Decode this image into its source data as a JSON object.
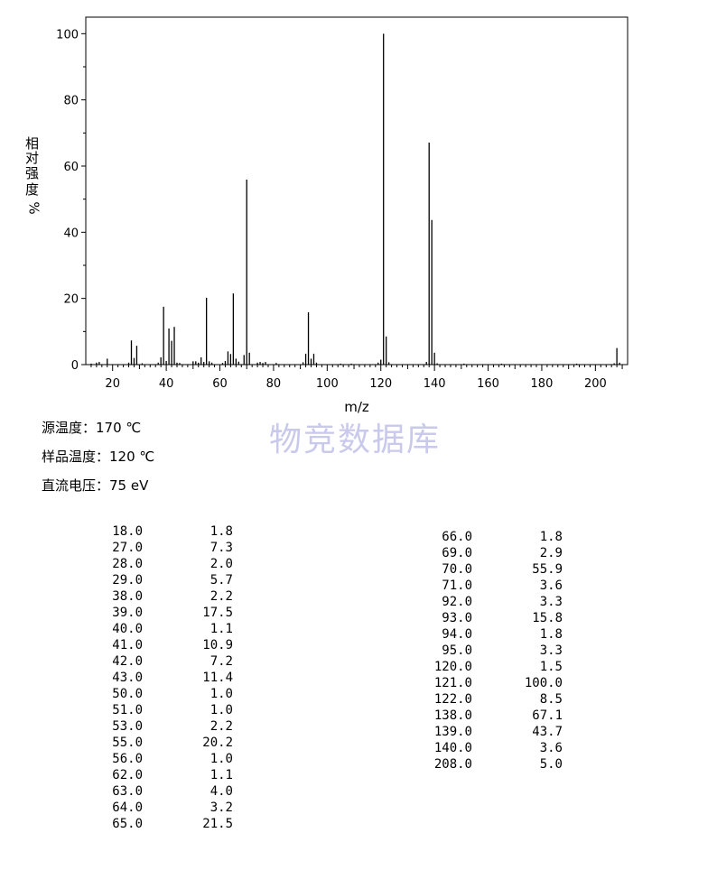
{
  "chart_data": {
    "type": "bar",
    "xlabel": "m/z",
    "ylabel": "相对强度%",
    "ylabel_chars": [
      "相",
      "对",
      "强",
      "度",
      "%"
    ],
    "xlim": [
      10,
      212
    ],
    "ylim": [
      0,
      105
    ],
    "xticks": [
      20,
      40,
      60,
      80,
      100,
      120,
      140,
      160,
      180,
      200
    ],
    "yticks": [
      0,
      20,
      40,
      60,
      80,
      100
    ],
    "peaks": [
      {
        "mz": 12,
        "intensity": 0.3
      },
      {
        "mz": 14,
        "intensity": 0.6
      },
      {
        "mz": 15,
        "intensity": 0.8
      },
      {
        "mz": 18,
        "intensity": 1.8
      },
      {
        "mz": 26,
        "intensity": 0.6
      },
      {
        "mz": 27,
        "intensity": 7.3
      },
      {
        "mz": 28,
        "intensity": 2.0
      },
      {
        "mz": 29,
        "intensity": 5.7
      },
      {
        "mz": 31,
        "intensity": 0.4
      },
      {
        "mz": 37,
        "intensity": 0.6
      },
      {
        "mz": 38,
        "intensity": 2.2
      },
      {
        "mz": 39,
        "intensity": 17.5
      },
      {
        "mz": 40,
        "intensity": 1.1
      },
      {
        "mz": 41,
        "intensity": 10.9
      },
      {
        "mz": 42,
        "intensity": 7.2
      },
      {
        "mz": 43,
        "intensity": 11.4
      },
      {
        "mz": 44,
        "intensity": 0.6
      },
      {
        "mz": 45,
        "intensity": 0.5
      },
      {
        "mz": 50,
        "intensity": 1.0
      },
      {
        "mz": 51,
        "intensity": 1.0
      },
      {
        "mz": 52,
        "intensity": 0.6
      },
      {
        "mz": 53,
        "intensity": 2.2
      },
      {
        "mz": 54,
        "intensity": 0.8
      },
      {
        "mz": 55,
        "intensity": 20.2
      },
      {
        "mz": 56,
        "intensity": 1.0
      },
      {
        "mz": 57,
        "intensity": 0.6
      },
      {
        "mz": 61,
        "intensity": 0.5
      },
      {
        "mz": 62,
        "intensity": 1.1
      },
      {
        "mz": 63,
        "intensity": 4.0
      },
      {
        "mz": 64,
        "intensity": 3.2
      },
      {
        "mz": 65,
        "intensity": 21.5
      },
      {
        "mz": 66,
        "intensity": 1.8
      },
      {
        "mz": 67,
        "intensity": 0.9
      },
      {
        "mz": 69,
        "intensity": 2.9
      },
      {
        "mz": 70,
        "intensity": 55.9
      },
      {
        "mz": 71,
        "intensity": 3.6
      },
      {
        "mz": 74,
        "intensity": 0.6
      },
      {
        "mz": 75,
        "intensity": 0.8
      },
      {
        "mz": 76,
        "intensity": 0.5
      },
      {
        "mz": 77,
        "intensity": 0.8
      },
      {
        "mz": 81,
        "intensity": 0.5
      },
      {
        "mz": 91,
        "intensity": 0.7
      },
      {
        "mz": 92,
        "intensity": 3.3
      },
      {
        "mz": 93,
        "intensity": 15.8
      },
      {
        "mz": 94,
        "intensity": 1.8
      },
      {
        "mz": 95,
        "intensity": 3.3
      },
      {
        "mz": 96,
        "intensity": 0.6
      },
      {
        "mz": 105,
        "intensity": 0.3
      },
      {
        "mz": 109,
        "intensity": 0.3
      },
      {
        "mz": 119,
        "intensity": 0.6
      },
      {
        "mz": 120,
        "intensity": 1.5
      },
      {
        "mz": 121,
        "intensity": 100.0
      },
      {
        "mz": 122,
        "intensity": 8.5
      },
      {
        "mz": 123,
        "intensity": 0.7
      },
      {
        "mz": 137,
        "intensity": 0.8
      },
      {
        "mz": 138,
        "intensity": 67.1
      },
      {
        "mz": 139,
        "intensity": 43.7
      },
      {
        "mz": 140,
        "intensity": 3.6
      },
      {
        "mz": 141,
        "intensity": 0.4
      },
      {
        "mz": 151,
        "intensity": 0.3
      },
      {
        "mz": 165,
        "intensity": 0.3
      },
      {
        "mz": 193,
        "intensity": 0.3
      },
      {
        "mz": 207,
        "intensity": 0.4
      },
      {
        "mz": 208,
        "intensity": 5.0
      },
      {
        "mz": 209,
        "intensity": 0.6
      }
    ]
  },
  "watermark": "物竞数据库",
  "conditions": [
    "源温度：170 ℃",
    "样品温度：120 ℃",
    "直流电压：75 eV"
  ],
  "peak_table_left": [
    {
      "mz": "18.0",
      "int": "1.8"
    },
    {
      "mz": "27.0",
      "int": "7.3"
    },
    {
      "mz": "28.0",
      "int": "2.0"
    },
    {
      "mz": "29.0",
      "int": "5.7"
    },
    {
      "mz": "38.0",
      "int": "2.2"
    },
    {
      "mz": "39.0",
      "int": "17.5"
    },
    {
      "mz": "40.0",
      "int": "1.1"
    },
    {
      "mz": "41.0",
      "int": "10.9"
    },
    {
      "mz": "42.0",
      "int": "7.2"
    },
    {
      "mz": "43.0",
      "int": "11.4"
    },
    {
      "mz": "50.0",
      "int": "1.0"
    },
    {
      "mz": "51.0",
      "int": "1.0"
    },
    {
      "mz": "53.0",
      "int": "2.2"
    },
    {
      "mz": "55.0",
      "int": "20.2"
    },
    {
      "mz": "56.0",
      "int": "1.0"
    },
    {
      "mz": "62.0",
      "int": "1.1"
    },
    {
      "mz": "63.0",
      "int": "4.0"
    },
    {
      "mz": "64.0",
      "int": "3.2"
    },
    {
      "mz": "65.0",
      "int": "21.5"
    }
  ],
  "peak_table_right": [
    {
      "mz": "66.0",
      "int": "1.8"
    },
    {
      "mz": "69.0",
      "int": "2.9"
    },
    {
      "mz": "70.0",
      "int": "55.9"
    },
    {
      "mz": "71.0",
      "int": "3.6"
    },
    {
      "mz": "92.0",
      "int": "3.3"
    },
    {
      "mz": "93.0",
      "int": "15.8"
    },
    {
      "mz": "94.0",
      "int": "1.8"
    },
    {
      "mz": "95.0",
      "int": "3.3"
    },
    {
      "mz": "120.0",
      "int": "1.5"
    },
    {
      "mz": "121.0",
      "int": "100.0"
    },
    {
      "mz": "122.0",
      "int": "8.5"
    },
    {
      "mz": "138.0",
      "int": "67.1"
    },
    {
      "mz": "139.0",
      "int": "43.7"
    },
    {
      "mz": "140.0",
      "int": "3.6"
    },
    {
      "mz": "208.0",
      "int": "5.0"
    }
  ]
}
